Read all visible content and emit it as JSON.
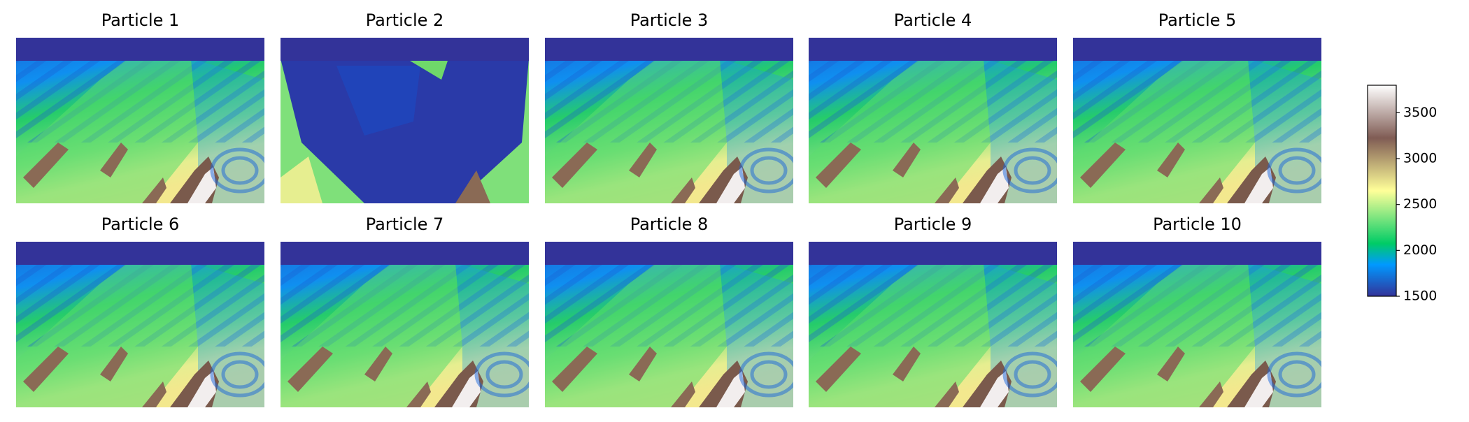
{
  "chart_data": {
    "type": "heatmap",
    "colormap": "terrain",
    "panels": [
      {
        "title": "Particle 1"
      },
      {
        "title": "Particle 2"
      },
      {
        "title": "Particle 3"
      },
      {
        "title": "Particle 4"
      },
      {
        "title": "Particle 5"
      },
      {
        "title": "Particle 6"
      },
      {
        "title": "Particle 7"
      },
      {
        "title": "Particle 8"
      },
      {
        "title": "Particle 9"
      },
      {
        "title": "Particle 10"
      }
    ],
    "colorbar": {
      "ylim": [
        1500,
        3800
      ],
      "yticks": [
        1500,
        2000,
        2500,
        3000,
        3500
      ]
    }
  }
}
